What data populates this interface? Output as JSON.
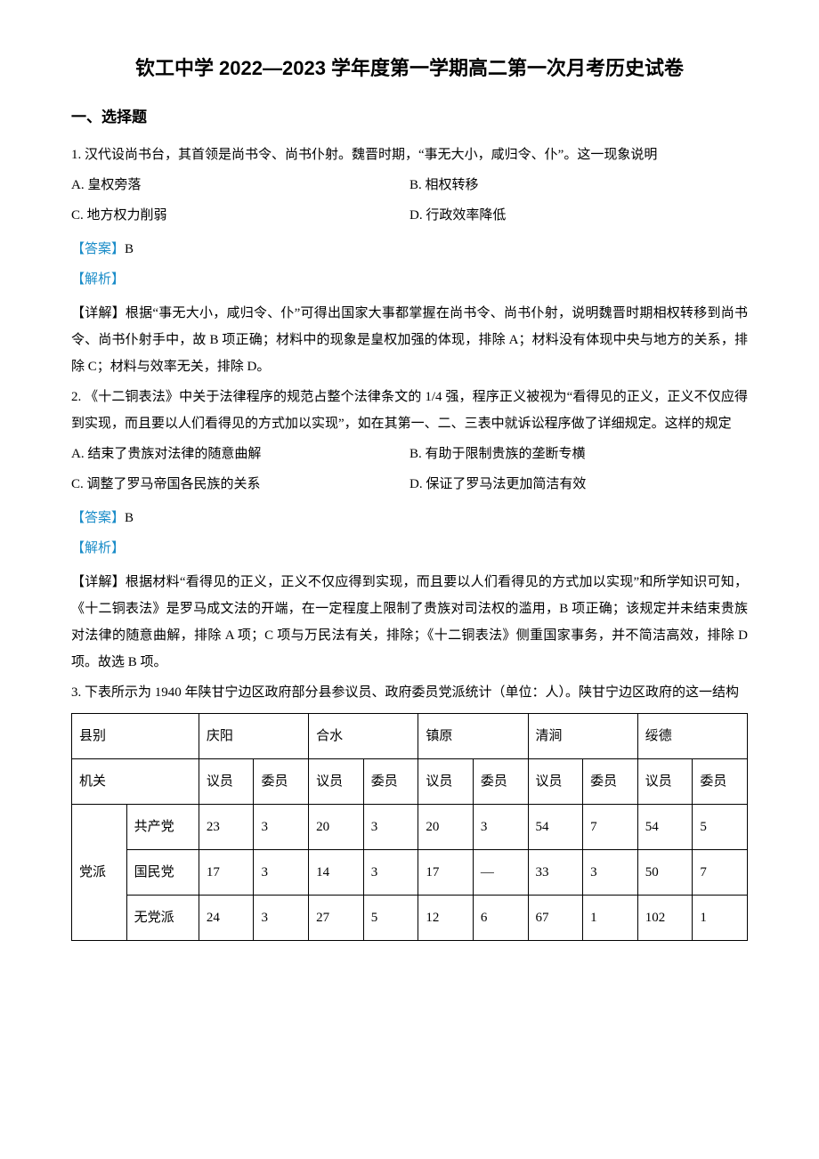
{
  "title": "钦工中学 2022—2023 学年度第一学期高二第一次月考历史试卷",
  "section1": "一、选择题",
  "q1": {
    "stem": "1. 汉代设尚书台，其首领是尚书令、尚书仆射。魏晋时期，“事无大小，咸归令、仆”。这一现象说明",
    "optA": "A. 皇权旁落",
    "optB": "B. 相权转移",
    "optC": "C. 地方权力削弱",
    "optD": "D. 行政效率降低",
    "answerLabel": "【答案】",
    "answerVal": "B",
    "analysis": "【解析】",
    "detail": "【详解】根据“事无大小，咸归令、仆”可得出国家大事都掌握在尚书令、尚书仆射，说明魏晋时期相权转移到尚书令、尚书仆射手中，故 B 项正确；材料中的现象是皇权加强的体现，排除 A；材料没有体现中央与地方的关系，排除 C；材料与效率无关，排除 D。"
  },
  "q2": {
    "stem": "2. 《十二铜表法》中关于法律程序的规范占整个法律条文的 1/4 强，程序正义被视为“看得见的正义，正义不仅应得到实现，而且要以人们看得见的方式加以实现”，如在其第一、二、三表中就诉讼程序做了详细规定。这样的规定",
    "optA": "A. 结束了贵族对法律的随意曲解",
    "optB": "B. 有助于限制贵族的垄断专横",
    "optC": "C. 调整了罗马帝国各民族的关系",
    "optD": "D. 保证了罗马法更加简洁有效",
    "answerLabel": "【答案】",
    "answerVal": "B",
    "analysis": "【解析】",
    "detail": "【详解】根据材料“看得见的正义，正义不仅应得到实现，而且要以人们看得见的方式加以实现”和所学知识可知，《十二铜表法》是罗马成文法的开端，在一定程度上限制了贵族对司法权的滥用，B 项正确；该规定并未结束贵族对法律的随意曲解，排除 A 项；C 项与万民法有关，排除；《十二铜表法》侧重国家事务，并不简洁高效，排除 D 项。故选 B 项。"
  },
  "q3": {
    "stem": "3. 下表所示为 1940 年陕甘宁边区政府部分县参议员、政府委员党派统计（单位：人）。陕甘宁边区政府的这一结构"
  },
  "table": {
    "header": {
      "county": "县别",
      "counties": [
        "庆阳",
        "合水",
        "镇原",
        "清涧",
        "绥德"
      ]
    },
    "row_organ": {
      "label": "机关",
      "sub": [
        "议员",
        "委员",
        "议员",
        "委员",
        "议员",
        "委员",
        "议员",
        "委员",
        "议员",
        "委员"
      ]
    },
    "party_label": "党派",
    "rows": [
      {
        "name": "共产党",
        "vals": [
          "23",
          "3",
          "20",
          "3",
          "20",
          "3",
          "54",
          "7",
          "54",
          "5"
        ]
      },
      {
        "name": "国民党",
        "vals": [
          "17",
          "3",
          "14",
          "3",
          "17",
          "—",
          "33",
          "3",
          "50",
          "7"
        ]
      },
      {
        "name": "无党派",
        "vals": [
          "24",
          "3",
          "27",
          "5",
          "12",
          "6",
          "67",
          "1",
          "102",
          "1"
        ]
      }
    ]
  }
}
